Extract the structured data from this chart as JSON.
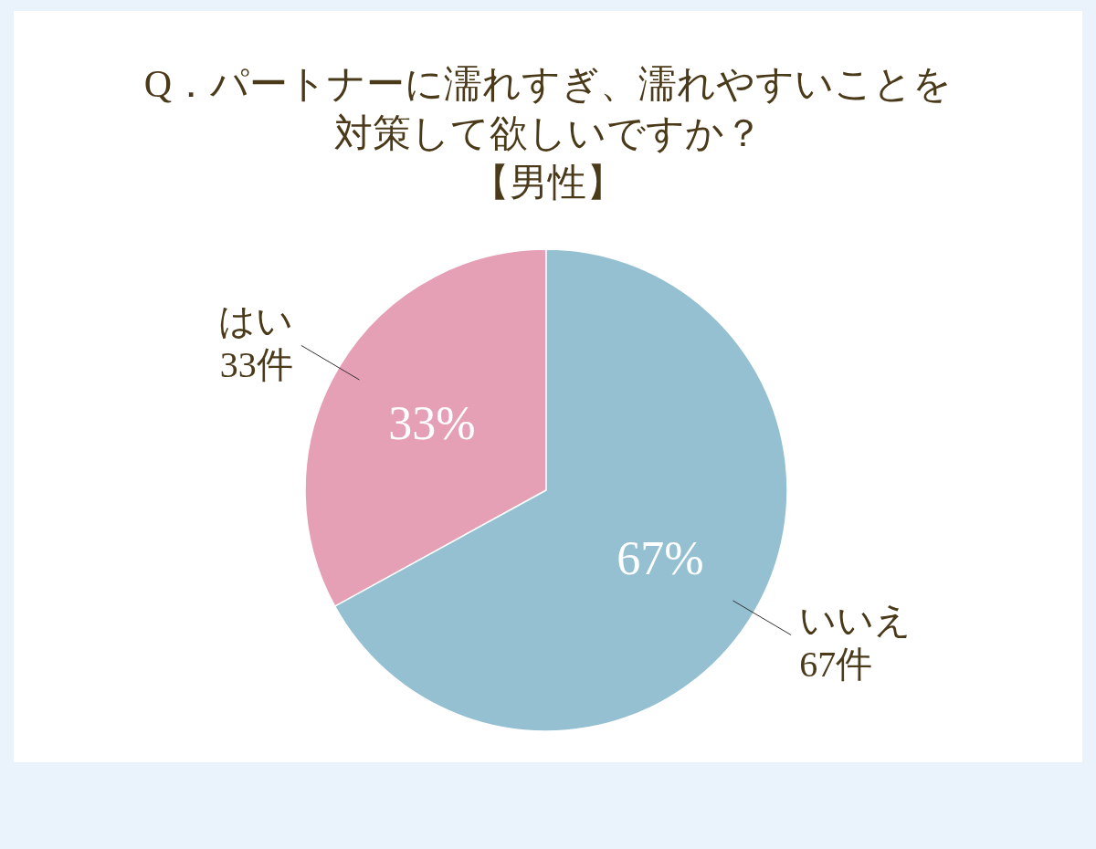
{
  "chart_data": {
    "type": "pie",
    "title": "Q．パートナーに濡れすぎ、濡れやすいことを対策して欲しいですか？",
    "subtitle": "【男性】",
    "categories": [
      "はい",
      "いいえ"
    ],
    "values": [
      33,
      67
    ],
    "colors": [
      "#e6a0b6",
      "#94c0d2"
    ],
    "value_labels": [
      "33%",
      "67%"
    ],
    "annotations": [
      "33件",
      "67件"
    ]
  }
}
